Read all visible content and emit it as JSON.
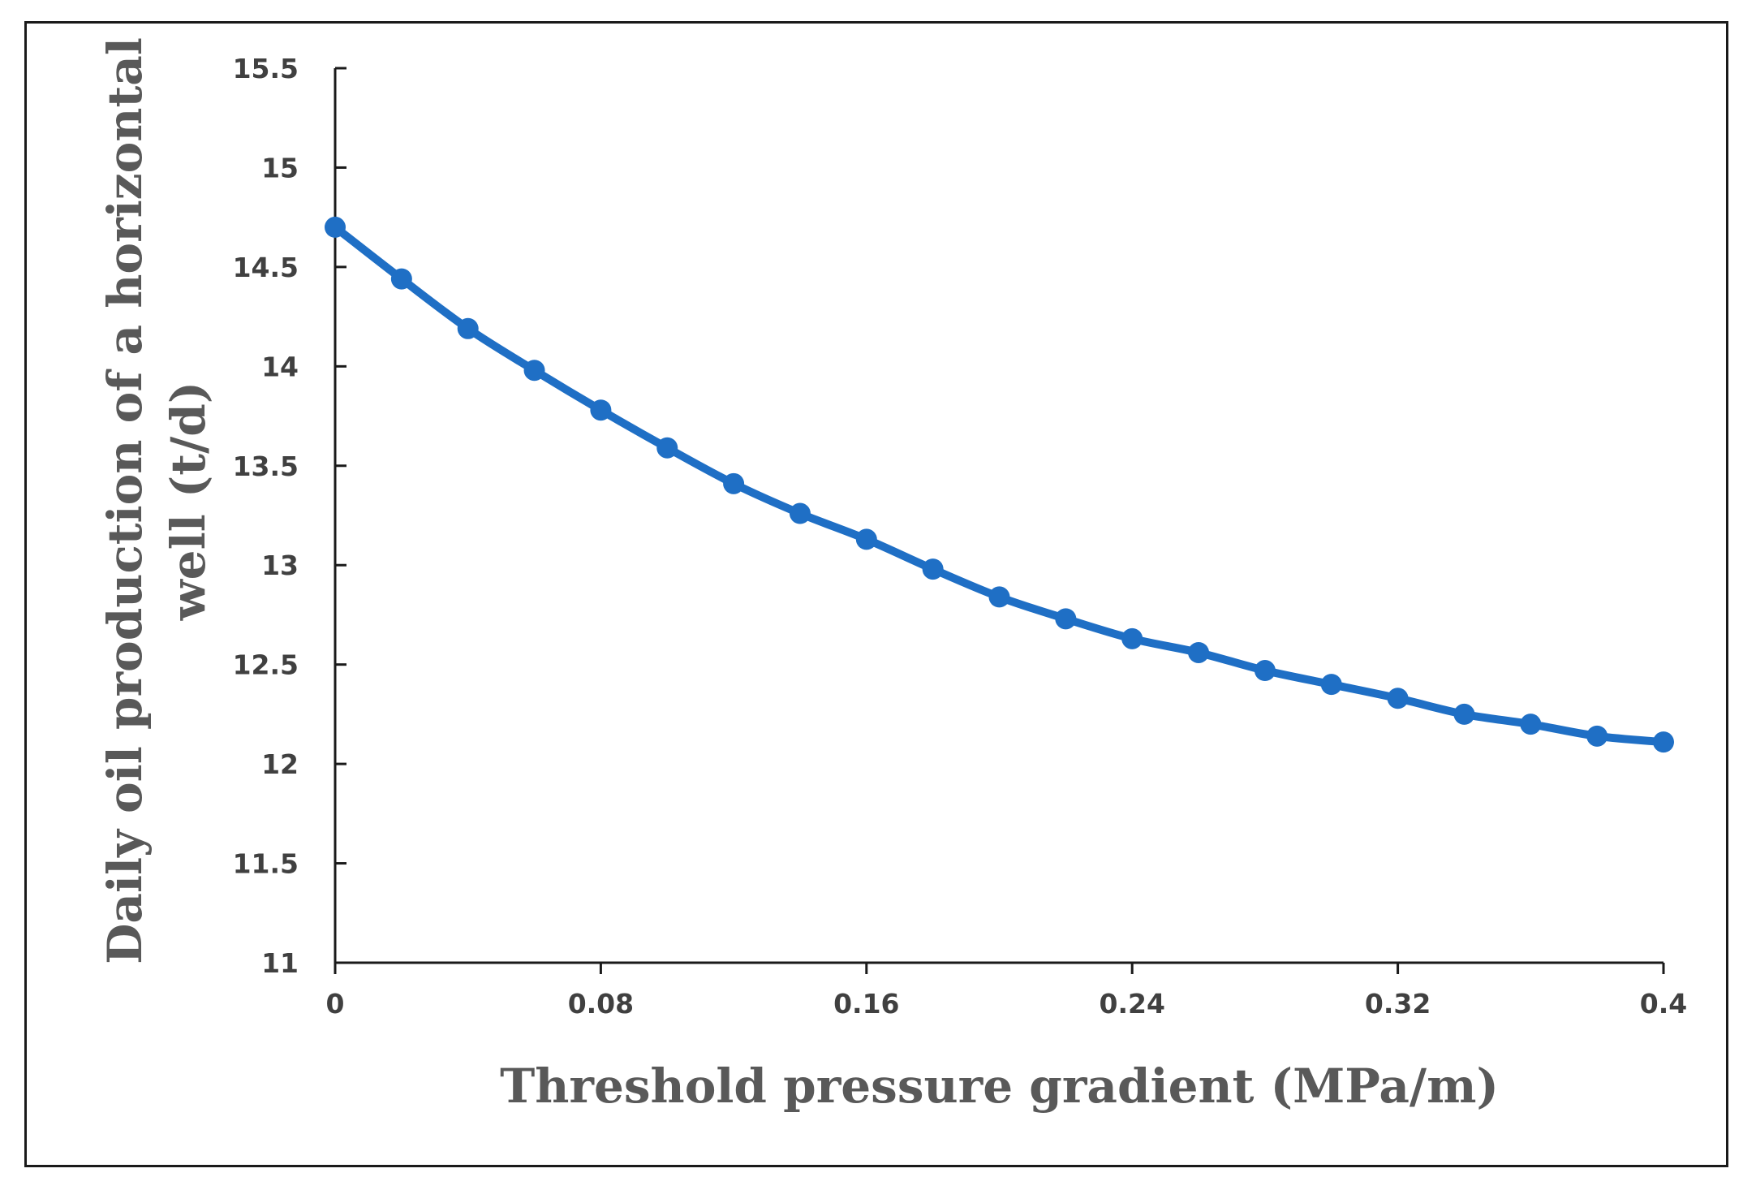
{
  "chart_data": {
    "type": "line",
    "title": "",
    "xlabel": "Threshold pressure gradient (MPa/m)",
    "ylabel_lines": [
      "Daily oil production of a horizontal",
      "well (t/d)"
    ],
    "xlim": [
      0,
      0.4
    ],
    "ylim": [
      11,
      15.5
    ],
    "x_ticks": [
      0,
      0.08,
      0.16,
      0.24,
      0.32,
      0.4
    ],
    "x_tick_labels": [
      "0",
      "0.08",
      "0.16",
      "0.24",
      "0.32",
      "0.4"
    ],
    "y_ticks": [
      11,
      11.5,
      12,
      12.5,
      13,
      13.5,
      14,
      14.5,
      15,
      15.5
    ],
    "y_tick_labels": [
      "11",
      "11.5",
      "12",
      "12.5",
      "13",
      "13.5",
      "14",
      "14.5",
      "15",
      "15.5"
    ],
    "grid": false,
    "series": [
      {
        "name": "Daily oil production",
        "color": "#1f6fc5",
        "x": [
          0,
          0.02,
          0.04,
          0.06,
          0.08,
          0.1,
          0.12,
          0.14,
          0.16,
          0.18,
          0.2,
          0.22,
          0.24,
          0.26,
          0.28,
          0.3,
          0.32,
          0.34,
          0.36,
          0.38,
          0.4
        ],
        "y": [
          14.7,
          14.44,
          14.19,
          13.98,
          13.78,
          13.59,
          13.41,
          13.26,
          13.13,
          12.98,
          12.84,
          12.73,
          12.63,
          12.56,
          12.47,
          12.4,
          12.33,
          12.25,
          12.2,
          12.14,
          12.11
        ]
      }
    ]
  }
}
